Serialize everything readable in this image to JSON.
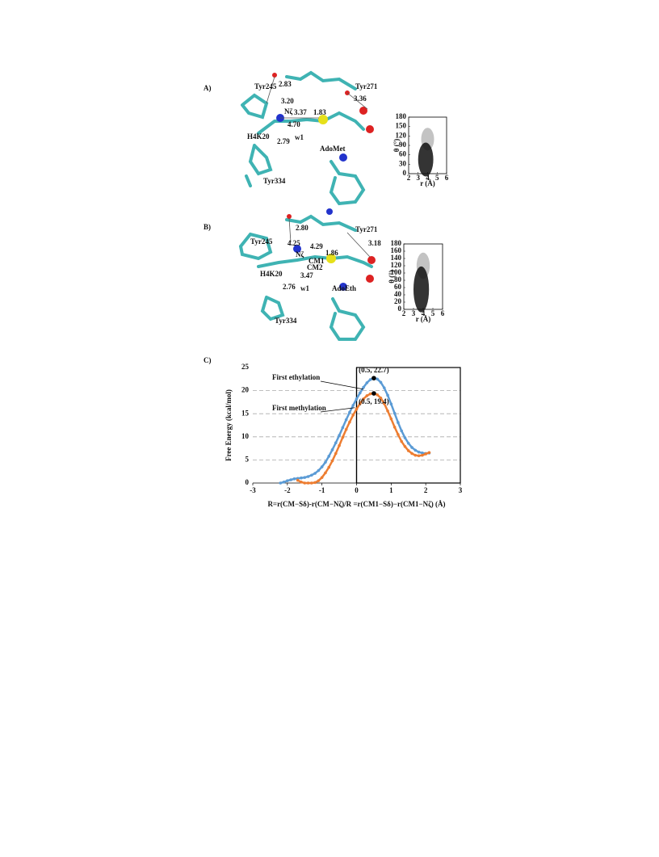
{
  "panels": {
    "a": {
      "label": "A)",
      "texts": [
        "Tyr245",
        "2.83",
        "Tyr271",
        "3.36",
        "3.20",
        "Nζ",
        "3.37",
        "1.83",
        "4.70",
        "H4K20",
        "2.79",
        "w1",
        "AdoMet",
        "Tyr334"
      ],
      "inset": {
        "ylabel": "θ (°)",
        "xlabel": "r (Å)",
        "yticks": [
          0,
          30,
          60,
          90,
          120,
          150,
          180
        ],
        "xticks": [
          2,
          3,
          4,
          5,
          6
        ]
      }
    },
    "b": {
      "label": "B)",
      "texts": [
        "2.80",
        "Tyr271",
        "Tyr245",
        "4.25",
        "4.29",
        "Nζ",
        "CM1",
        "CM2",
        "1.86",
        "3.18",
        "H4K20",
        "3.47",
        "2.76",
        "w1",
        "AdoEth",
        "Tyr334"
      ],
      "inset": {
        "ylabel": "θ (°)",
        "xlabel": "r (Å)",
        "yticks": [
          0,
          20,
          40,
          60,
          80,
          100,
          120,
          140,
          160,
          180
        ],
        "xticks": [
          2,
          3,
          4,
          5,
          6
        ]
      }
    }
  },
  "chart_data": {
    "type": "line",
    "label": "C)",
    "xlabel": "R=r(CM−Sδ)-r(CM−Nζ)/R =r(CM1−Sδ)−r(CM1−Nζ) (Å)",
    "ylabel": "Free Energy (kcal/mol)",
    "x": [
      -2.2,
      -2.1,
      -2.0,
      -1.9,
      -1.8,
      -1.7,
      -1.6,
      -1.5,
      -1.4,
      -1.3,
      -1.2,
      -1.1,
      -1.0,
      -0.9,
      -0.8,
      -0.7,
      -0.6,
      -0.5,
      -0.4,
      -0.3,
      -0.2,
      -0.1,
      0,
      0.1,
      0.2,
      0.3,
      0.4,
      0.5,
      0.6,
      0.7,
      0.8,
      0.9,
      1.0,
      1.1,
      1.2,
      1.3,
      1.4,
      1.5,
      1.6,
      1.7,
      1.8,
      1.9,
      2.0,
      2.1
    ],
    "series": [
      {
        "name": "First ethylation",
        "color": "#5b9bd5",
        "values": [
          0,
          0.2,
          0.5,
          0.7,
          0.9,
          1.0,
          1.1,
          1.2,
          1.4,
          1.7,
          2.1,
          2.7,
          3.5,
          4.5,
          5.8,
          7.2,
          8.7,
          10.3,
          12.0,
          13.7,
          15.3,
          16.8,
          18.2,
          19.5,
          20.7,
          21.7,
          22.4,
          22.7,
          22.5,
          21.8,
          20.6,
          19.0,
          17.1,
          15.1,
          13.1,
          11.3,
          9.8,
          8.6,
          7.7,
          7.1,
          6.7,
          6.5,
          6.4,
          6.5
        ]
      },
      {
        "name": "First methylation",
        "color": "#ed7d31",
        "values": [
          null,
          null,
          null,
          null,
          null,
          0.6,
          0.2,
          0,
          0,
          0,
          0.1,
          0.5,
          1.2,
          2.2,
          3.4,
          4.8,
          6.4,
          8.1,
          9.9,
          11.6,
          13.2,
          14.7,
          16.0,
          17.2,
          18.2,
          18.9,
          19.3,
          19.4,
          19.1,
          18.4,
          17.2,
          15.6,
          13.9,
          12.1,
          10.5,
          9.0,
          7.9,
          7.0,
          6.4,
          6.0,
          5.9,
          6.0,
          6.3,
          6.6
        ]
      }
    ],
    "annotations": [
      {
        "text": "(0.5, 22.7)",
        "x": 0.5,
        "y": 22.7
      },
      {
        "text": "(0.5, 19.4)",
        "x": 0.5,
        "y": 19.4
      }
    ],
    "xlim": [
      -3,
      3
    ],
    "xticks": [
      -3,
      -2,
      -1,
      0,
      1,
      2,
      3
    ],
    "ylim": [
      0,
      25
    ],
    "yticks": [
      0,
      5,
      10,
      15,
      20,
      25
    ],
    "grid": true
  }
}
